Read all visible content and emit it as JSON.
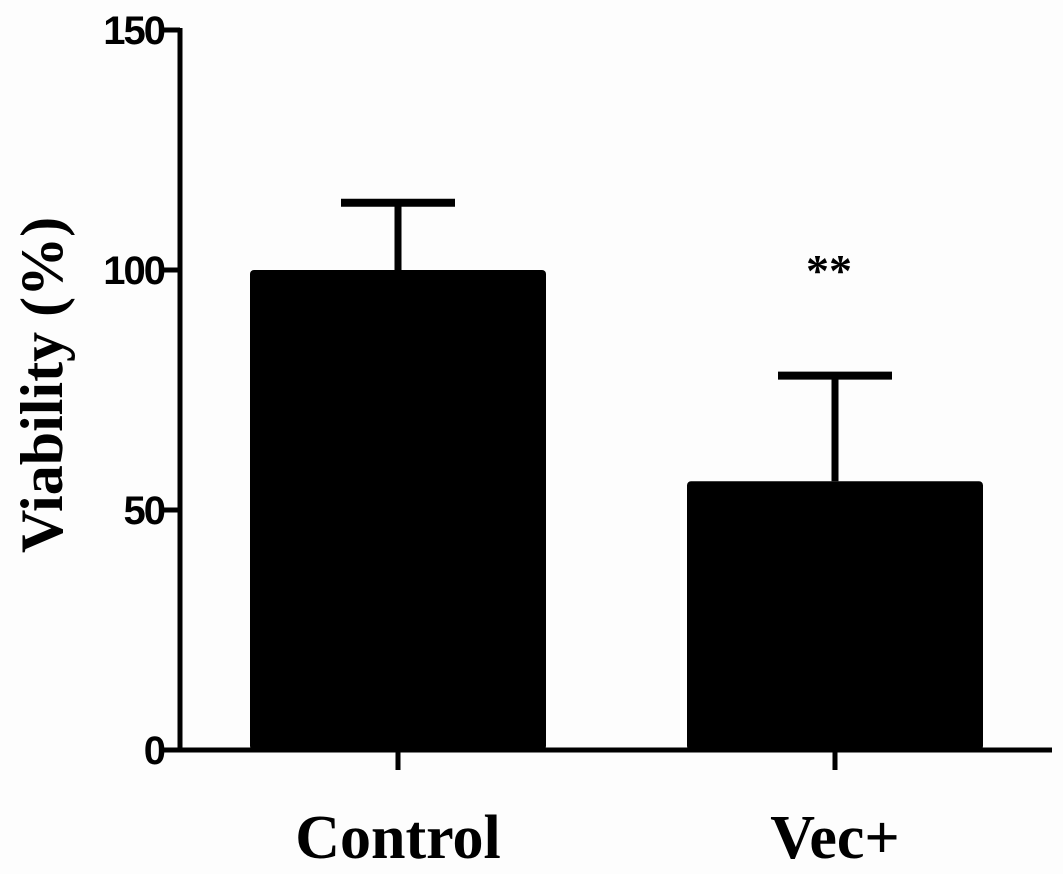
{
  "chart_data": {
    "type": "bar",
    "title": "",
    "xlabel": "",
    "ylabel": "Viability (%)",
    "ylim": [
      0,
      150
    ],
    "yticks": [
      0,
      50,
      100,
      150
    ],
    "categories": [
      "Control",
      "Vec+"
    ],
    "values": [
      100,
      56
    ],
    "error_upper": [
      114,
      78
    ],
    "annotations": [
      "",
      "**"
    ],
    "bar_color": "#000000"
  }
}
